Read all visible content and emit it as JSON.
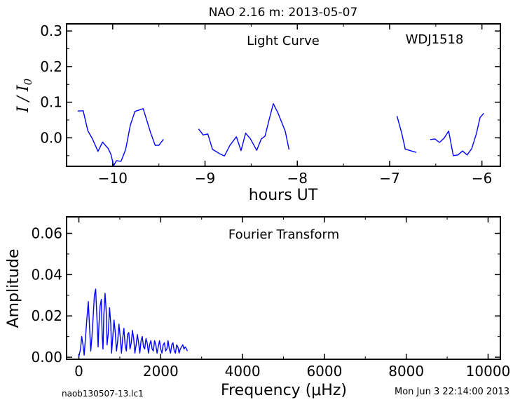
{
  "figure": {
    "title": "NAO 2.16 m:  2013-05-07",
    "footer_left": "naob130507-13.lc1",
    "footer_right": "Mon Jun  3 22:14:00 2013"
  },
  "chart_data": [
    {
      "type": "line",
      "panel": "light-curve",
      "title": "Light Curve",
      "annotation": "WDJ1518",
      "xlabel": "hours UT",
      "ylabel": "I / I0",
      "xlim": [
        -10.5,
        -5.8
      ],
      "ylim": [
        -0.08,
        0.32
      ],
      "xticks": [
        -10,
        -9,
        -8,
        -7,
        -6
      ],
      "xtick_labels": [
        "−10",
        "−9",
        "−8",
        "−7",
        "−6"
      ],
      "yticks": [
        0.0,
        0.1,
        0.2,
        0.3
      ],
      "ytick_labels": [
        "0.0",
        "0.1",
        "0.2",
        "0.3"
      ],
      "color": "#0000ff",
      "segments": [
        [
          [
            -10.38,
            0.075
          ],
          [
            -10.32,
            0.076
          ],
          [
            -10.27,
            0.02
          ],
          [
            -10.22,
            -0.003
          ],
          [
            -10.16,
            -0.038
          ],
          [
            -10.11,
            -0.012
          ],
          [
            -10.05,
            -0.03
          ],
          [
            -10.02,
            -0.046
          ],
          [
            -9.99,
            -0.078
          ],
          [
            -9.96,
            -0.064
          ],
          [
            -9.91,
            -0.066
          ],
          [
            -9.86,
            -0.033
          ],
          [
            -9.81,
            0.035
          ],
          [
            -9.76,
            0.074
          ],
          [
            -9.67,
            0.082
          ],
          [
            -9.59,
            0.015
          ],
          [
            -9.54,
            -0.021
          ],
          [
            -9.5,
            -0.021
          ],
          [
            -9.45,
            -0.004
          ]
        ],
        [
          [
            -9.07,
            0.025
          ],
          [
            -9.02,
            0.008
          ],
          [
            -8.97,
            0.011
          ],
          [
            -8.92,
            -0.032
          ],
          [
            -8.84,
            -0.045
          ],
          [
            -8.79,
            -0.051
          ],
          [
            -8.73,
            -0.021
          ],
          [
            -8.66,
            0.003
          ],
          [
            -8.61,
            -0.036
          ],
          [
            -8.56,
            0.013
          ],
          [
            -8.51,
            -0.002
          ],
          [
            -8.44,
            -0.035
          ],
          [
            -8.39,
            -0.003
          ],
          [
            -8.35,
            0.005
          ],
          [
            -8.3,
            0.056
          ],
          [
            -8.26,
            0.096
          ],
          [
            -8.21,
            0.07
          ],
          [
            -8.13,
            0.018
          ],
          [
            -8.09,
            -0.033
          ]
        ],
        [
          [
            -6.92,
            0.061
          ],
          [
            -6.87,
            0.014
          ],
          [
            -6.83,
            -0.032
          ],
          [
            -6.71,
            -0.041
          ]
        ],
        [
          [
            -6.56,
            -0.005
          ],
          [
            -6.51,
            -0.003
          ],
          [
            -6.46,
            -0.013
          ],
          [
            -6.41,
            -0.001
          ],
          [
            -6.36,
            0.019
          ],
          [
            -6.31,
            -0.05
          ],
          [
            -6.26,
            -0.048
          ],
          [
            -6.21,
            -0.037
          ],
          [
            -6.16,
            -0.048
          ],
          [
            -6.11,
            -0.03
          ],
          [
            -6.06,
            0.012
          ],
          [
            -6.02,
            0.057
          ],
          [
            -5.98,
            0.069
          ]
        ]
      ]
    },
    {
      "type": "line",
      "panel": "fourier-transform",
      "title": "Fourier Transform",
      "xlabel": "Frequency (μHz)",
      "ylabel": "Amplitude",
      "xlim": [
        -300,
        10300
      ],
      "ylim": [
        -0.001,
        0.068
      ],
      "xticks": [
        0,
        2000,
        4000,
        6000,
        8000,
        10000
      ],
      "xtick_labels": [
        "0",
        "2000",
        "4000",
        "6000",
        "8000",
        "10000"
      ],
      "yticks": [
        0.0,
        0.02,
        0.04,
        0.06
      ],
      "ytick_labels": [
        "0.00",
        "0.02",
        "0.04",
        "0.06"
      ],
      "color": "#0000ff",
      "points": [
        [
          0,
          0.0003
        ],
        [
          40,
          0.004
        ],
        [
          70,
          0.01
        ],
        [
          100,
          0.006
        ],
        [
          130,
          0.001
        ],
        [
          160,
          0.009
        ],
        [
          190,
          0.017
        ],
        [
          230,
          0.027
        ],
        [
          260,
          0.015
        ],
        [
          290,
          0.003
        ],
        [
          320,
          0.01
        ],
        [
          350,
          0.02
        ],
        [
          380,
          0.03
        ],
        [
          410,
          0.033
        ],
        [
          440,
          0.02
        ],
        [
          470,
          0.005
        ],
        [
          490,
          0.015
        ],
        [
          520,
          0.025
        ],
        [
          550,
          0.028
        ],
        [
          570,
          0.01
        ],
        [
          590,
          0.004
        ],
        [
          610,
          0.02
        ],
        [
          640,
          0.031
        ],
        [
          670,
          0.022
        ],
        [
          690,
          0.006
        ],
        [
          720,
          0.012
        ],
        [
          750,
          0.024
        ],
        [
          780,
          0.016
        ],
        [
          800,
          0.002
        ],
        [
          830,
          0.01
        ],
        [
          860,
          0.018
        ],
        [
          890,
          0.012
        ],
        [
          920,
          0.003
        ],
        [
          950,
          0.008
        ],
        [
          980,
          0.016
        ],
        [
          1010,
          0.01
        ],
        [
          1040,
          0.002
        ],
        [
          1070,
          0.009
        ],
        [
          1100,
          0.014
        ],
        [
          1130,
          0.006
        ],
        [
          1160,
          0.003
        ],
        [
          1190,
          0.011
        ],
        [
          1220,
          0.012
        ],
        [
          1250,
          0.004
        ],
        [
          1280,
          0.007
        ],
        [
          1310,
          0.013
        ],
        [
          1340,
          0.009
        ],
        [
          1370,
          0.002
        ],
        [
          1400,
          0.006
        ],
        [
          1430,
          0.011
        ],
        [
          1460,
          0.007
        ],
        [
          1490,
          0.002
        ],
        [
          1520,
          0.008
        ],
        [
          1550,
          0.01
        ],
        [
          1580,
          0.005
        ],
        [
          1610,
          0.004
        ],
        [
          1640,
          0.009
        ],
        [
          1670,
          0.007
        ],
        [
          1700,
          0.002
        ],
        [
          1730,
          0.006
        ],
        [
          1760,
          0.008
        ],
        [
          1790,
          0.004
        ],
        [
          1820,
          0.003
        ],
        [
          1850,
          0.008
        ],
        [
          1880,
          0.006
        ],
        [
          1910,
          0.002
        ],
        [
          1940,
          0.005
        ],
        [
          1970,
          0.008
        ],
        [
          2000,
          0.004
        ],
        [
          2030,
          0.002
        ],
        [
          2060,
          0.006
        ],
        [
          2090,
          0.007
        ],
        [
          2120,
          0.003
        ],
        [
          2150,
          0.004
        ],
        [
          2180,
          0.008
        ],
        [
          2210,
          0.004
        ],
        [
          2240,
          0.002
        ],
        [
          2270,
          0.006
        ],
        [
          2300,
          0.007
        ],
        [
          2330,
          0.003
        ],
        [
          2360,
          0.002
        ],
        [
          2390,
          0.006
        ],
        [
          2420,
          0.005
        ],
        [
          2450,
          0.002
        ],
        [
          2480,
          0.004
        ],
        [
          2510,
          0.005
        ],
        [
          2540,
          0.006
        ],
        [
          2570,
          0.004
        ],
        [
          2600,
          0.005
        ],
        [
          2630,
          0.004
        ],
        [
          2650,
          0.003
        ]
      ]
    }
  ]
}
